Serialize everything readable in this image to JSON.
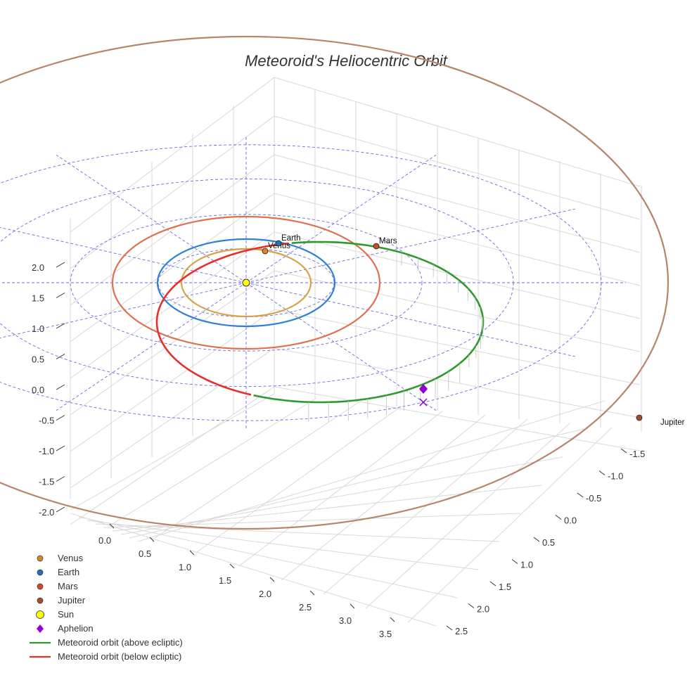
{
  "chart_data": {
    "type": "3d-orbit",
    "title": "Meteoroid's Heliocentric Orbit",
    "axes": {
      "x_ticks": [
        "0.0",
        "0.5",
        "1.0",
        "1.5",
        "2.0",
        "2.5",
        "3.0",
        "3.5"
      ],
      "y_ticks": [
        "-1.5",
        "-1.0",
        "-0.5",
        "0.0",
        "0.5",
        "1.0",
        "1.5",
        "2.0",
        "2.5"
      ],
      "z_ticks": [
        "2.0",
        "1.5",
        "1.0",
        "0.5",
        "0.0",
        "-0.5",
        "-1.0",
        "-1.5",
        "-2.0"
      ],
      "grid": true
    },
    "planets": [
      {
        "name": "Venus",
        "color": "#d4882a",
        "orbit_color": "#d9a24a",
        "orbit_radius_au": 0.72
      },
      {
        "name": "Earth",
        "color": "#2a6fb5",
        "orbit_color": "#2f7fd6",
        "orbit_radius_au": 1.0
      },
      {
        "name": "Mars",
        "color": "#d04a22",
        "orbit_color": "#e07050",
        "orbit_radius_au": 1.52
      },
      {
        "name": "Jupiter",
        "color": "#a0522d",
        "orbit_color": "#b8846a",
        "orbit_radius_au": 5.2
      }
    ],
    "sun": {
      "name": "Sun",
      "color": "#ffff00"
    },
    "aphelion": {
      "name": "Aphelion",
      "color": "#9400d3"
    },
    "meteoroid": {
      "above_name": "Meteoroid orbit (above ecliptic)",
      "above_color": "#2e9a2e",
      "below_name": "Meteoroid orbit (below ecliptic)",
      "below_color": "#e8302a"
    },
    "ecliptic_grid_color": "#6a6ae0",
    "legend": [
      "Venus",
      "Earth",
      "Mars",
      "Jupiter",
      "Sun",
      "Aphelion",
      "Meteoroid orbit (above ecliptic)",
      "Meteoroid orbit (below ecliptic)"
    ],
    "legend_position": "bottom-left"
  }
}
